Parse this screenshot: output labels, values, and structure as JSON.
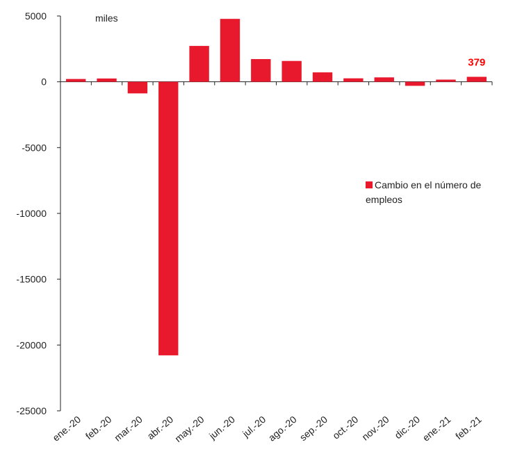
{
  "chart_data": {
    "type": "bar",
    "unit_label": "miles",
    "categories": [
      "ene.-20",
      "feb.-20",
      "mar.-20",
      "abr.-20",
      "may.-20",
      "jun.-20",
      "jul.-20",
      "ago.-20",
      "sep.-20",
      "oct.-20",
      "nov.-20",
      "dic.-20",
      "ene.-21",
      "feb.-21"
    ],
    "series": [
      {
        "name": "Cambio en el número de empleos",
        "values": [
          214,
          251,
          -881,
          -20787,
          2725,
          4781,
          1726,
          1583,
          716,
          264,
          336,
          -306,
          166,
          379
        ]
      }
    ],
    "highlight_label": {
      "index": 13,
      "text": "379"
    },
    "legend": {
      "lines": [
        "Cambio en el número de",
        "empleos"
      ],
      "position": "right"
    },
    "ylim": [
      -25000,
      5000
    ],
    "yticks": [
      5000,
      0,
      -5000,
      -10000,
      -15000,
      -20000,
      -25000
    ],
    "ytick_labels": [
      "5000",
      "0",
      "-5000",
      "-10000",
      "-15000",
      "-20000",
      "-25000"
    ],
    "grid": false,
    "colors": {
      "bar": "#e8192c",
      "highlight": "#ff0000",
      "axis": "#222222"
    }
  }
}
